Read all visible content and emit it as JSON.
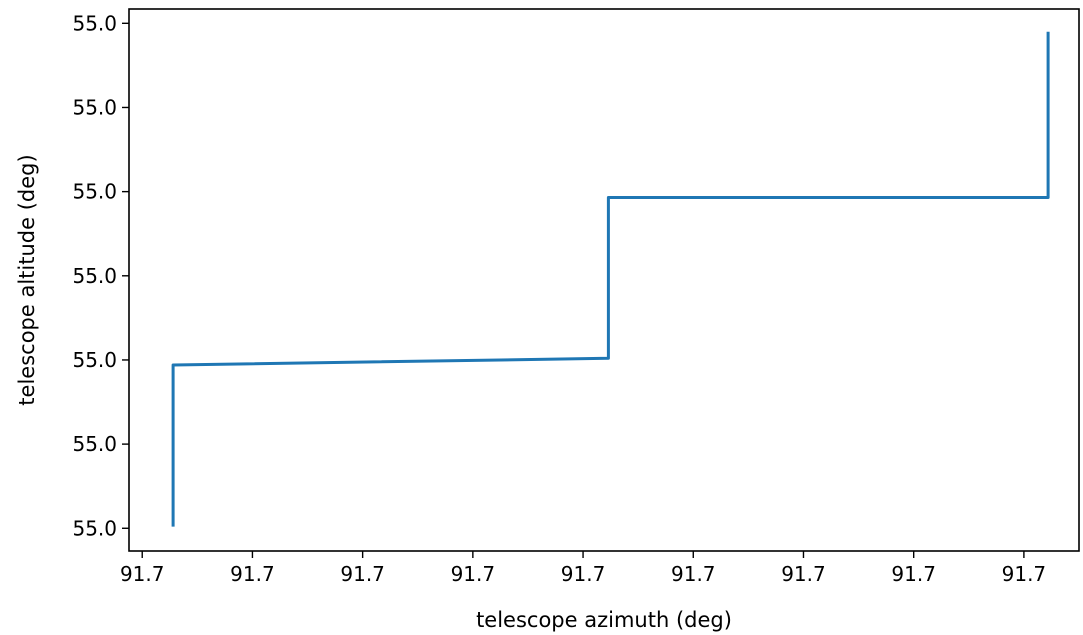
{
  "chart_data": {
    "type": "line",
    "title": "",
    "xlabel": "telescope azimuth (deg)",
    "ylabel": "telescope altitude (deg)",
    "x_ticks": [
      "91.7",
      "91.7",
      "91.7",
      "91.7",
      "91.7",
      "91.7",
      "91.7",
      "91.7",
      "91.7"
    ],
    "y_ticks": [
      "55.0",
      "55.0",
      "55.0",
      "55.0",
      "55.0",
      "55.0",
      "55.0"
    ],
    "x_tick_values": [
      0,
      1,
      2,
      3,
      4,
      5,
      6,
      7,
      8
    ],
    "y_tick_values": [
      0,
      1,
      2,
      3,
      4,
      5,
      6
    ],
    "xlim": [
      -0.12,
      8.5
    ],
    "ylim": [
      -0.27,
      6.17
    ],
    "grid": false,
    "series": [
      {
        "color": "#1f77b4",
        "x": [
          0.28,
          0.28,
          4.23,
          4.23,
          8.22,
          8.22
        ],
        "y": [
          0.02,
          1.94,
          2.02,
          3.93,
          3.93,
          5.9
        ]
      }
    ]
  }
}
